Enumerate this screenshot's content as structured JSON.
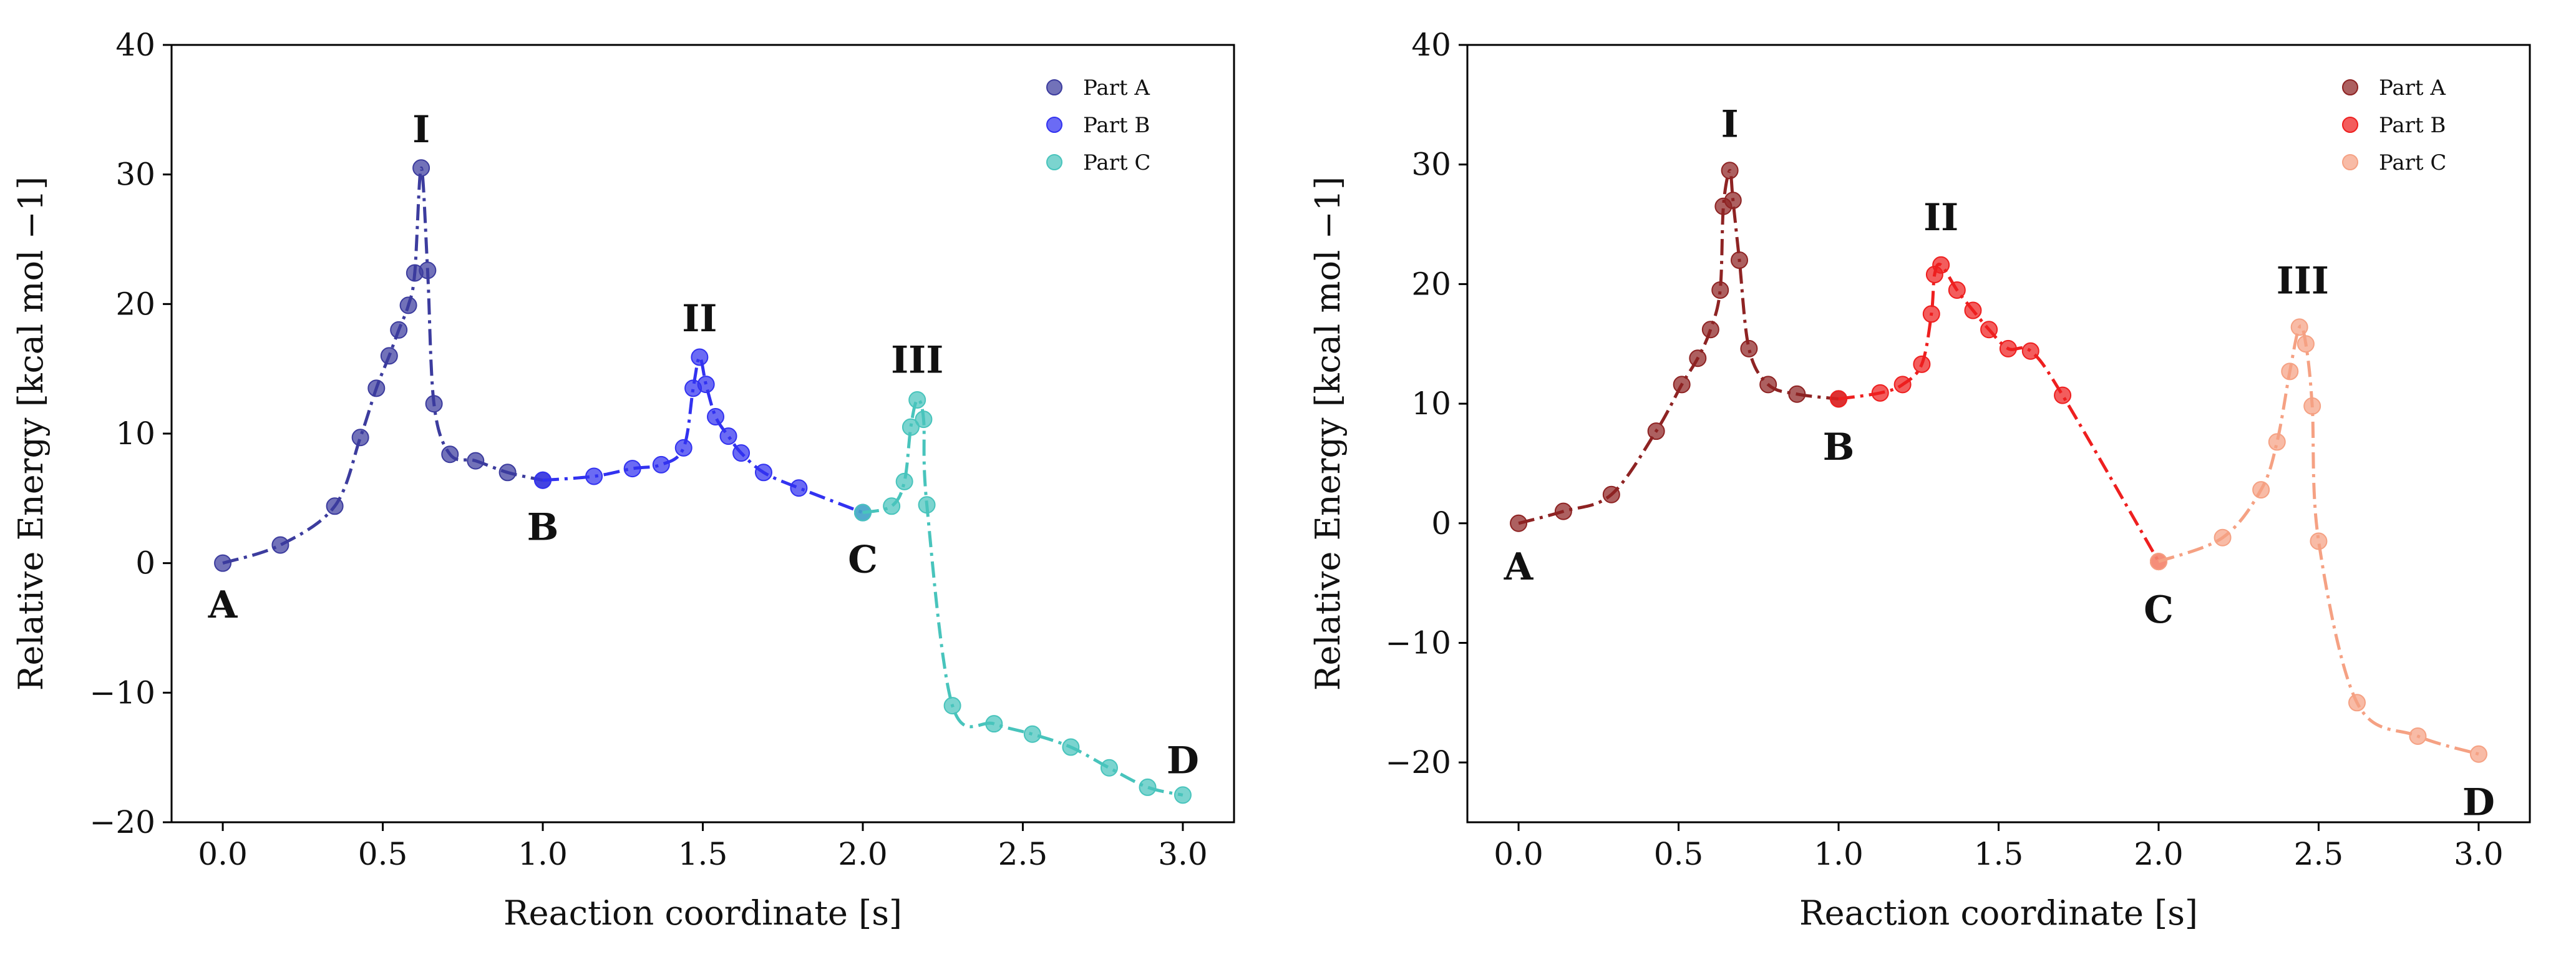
{
  "colors": {
    "left": {
      "part_a": "#3c3c9e",
      "part_b": "#3232f0",
      "part_c": "#48c4bc"
    },
    "right": {
      "part_a": "#8e2323",
      "part_b": "#ee1f1f",
      "part_c": "#f5a183"
    }
  },
  "chart_data": [
    {
      "type": "line",
      "title": "",
      "xlabel": "Reaction coordinate [s]",
      "ylabel": "Relative Energy [kcal mol −1]",
      "xlim": [
        -0.16,
        3.16
      ],
      "ylim": [
        -20,
        40
      ],
      "xticks": [
        0.0,
        0.5,
        1.0,
        1.5,
        2.0,
        2.5,
        3.0
      ],
      "xtick_labels": [
        "0.0",
        "0.5",
        "1.0",
        "1.5",
        "2.0",
        "2.5",
        "3.0"
      ],
      "yticks": [
        -20,
        -10,
        0,
        10,
        20,
        30,
        40
      ],
      "ytick_labels": [
        "−20",
        "−10",
        "0",
        "10",
        "20",
        "30",
        "40"
      ],
      "legend": {
        "position": "top-right",
        "entries": [
          "Part A",
          "Part B",
          "Part C"
        ]
      },
      "series": [
        {
          "name": "Part A",
          "color_key": "part_a",
          "points": [
            [
              0.0,
              0.0
            ],
            [
              0.18,
              1.4
            ],
            [
              0.35,
              4.4
            ],
            [
              0.43,
              9.7
            ],
            [
              0.48,
              13.5
            ],
            [
              0.52,
              16.0
            ],
            [
              0.55,
              18.0
            ],
            [
              0.58,
              19.9
            ],
            [
              0.6,
              22.4
            ],
            [
              0.62,
              30.5
            ],
            [
              0.64,
              22.6
            ],
            [
              0.66,
              12.3
            ],
            [
              0.71,
              8.4
            ],
            [
              0.79,
              7.9
            ],
            [
              0.89,
              7.0
            ],
            [
              1.0,
              6.4
            ]
          ]
        },
        {
          "name": "Part B",
          "color_key": "part_b",
          "points": [
            [
              1.0,
              6.4
            ],
            [
              1.16,
              6.7
            ],
            [
              1.28,
              7.3
            ],
            [
              1.37,
              7.6
            ],
            [
              1.44,
              8.9
            ],
            [
              1.47,
              13.5
            ],
            [
              1.49,
              15.9
            ],
            [
              1.51,
              13.8
            ],
            [
              1.54,
              11.3
            ],
            [
              1.58,
              9.8
            ],
            [
              1.62,
              8.5
            ],
            [
              1.69,
              7.0
            ],
            [
              1.8,
              5.8
            ],
            [
              2.0,
              3.9
            ]
          ]
        },
        {
          "name": "Part C",
          "color_key": "part_c",
          "points": [
            [
              2.0,
              3.9
            ],
            [
              2.09,
              4.4
            ],
            [
              2.13,
              6.3
            ],
            [
              2.15,
              10.5
            ],
            [
              2.17,
              12.6
            ],
            [
              2.19,
              11.1
            ],
            [
              2.2,
              4.5
            ],
            [
              2.28,
              -11.0
            ],
            [
              2.41,
              -12.4
            ],
            [
              2.53,
              -13.2
            ],
            [
              2.65,
              -14.2
            ],
            [
              2.77,
              -15.8
            ],
            [
              2.89,
              -17.3
            ],
            [
              3.0,
              -17.9
            ]
          ]
        }
      ],
      "annotations": [
        {
          "text": "A",
          "x": 0.0,
          "y": -3.2
        },
        {
          "text": "I",
          "x": 0.62,
          "y": 33.5
        },
        {
          "text": "B",
          "x": 1.0,
          "y": 2.8
        },
        {
          "text": "II",
          "x": 1.49,
          "y": 18.9
        },
        {
          "text": "C",
          "x": 2.0,
          "y": 0.3
        },
        {
          "text": "III",
          "x": 2.17,
          "y": 15.7
        },
        {
          "text": "D",
          "x": 3.0,
          "y": -15.2
        }
      ]
    },
    {
      "type": "line",
      "title": "",
      "xlabel": "Reaction coordinate [s]",
      "ylabel": "Relative Energy [kcal mol −1]",
      "xlim": [
        -0.16,
        3.16
      ],
      "ylim": [
        -25,
        40
      ],
      "xticks": [
        0.0,
        0.5,
        1.0,
        1.5,
        2.0,
        2.5,
        3.0
      ],
      "xtick_labels": [
        "0.0",
        "0.5",
        "1.0",
        "1.5",
        "2.0",
        "2.5",
        "3.0"
      ],
      "yticks": [
        -20,
        -10,
        0,
        10,
        20,
        30,
        40
      ],
      "ytick_labels": [
        "−20",
        "−10",
        "0",
        "10",
        "20",
        "30",
        "40"
      ],
      "legend": {
        "position": "top-right",
        "entries": [
          "Part A",
          "Part B",
          "Part C"
        ]
      },
      "series": [
        {
          "name": "Part A",
          "color_key": "part_a",
          "points": [
            [
              0.0,
              0.0
            ],
            [
              0.14,
              1.0
            ],
            [
              0.29,
              2.4
            ],
            [
              0.43,
              7.7
            ],
            [
              0.51,
              11.6
            ],
            [
              0.56,
              13.8
            ],
            [
              0.6,
              16.2
            ],
            [
              0.63,
              19.5
            ],
            [
              0.64,
              26.5
            ],
            [
              0.66,
              29.5
            ],
            [
              0.67,
              27.0
            ],
            [
              0.69,
              22.0
            ],
            [
              0.72,
              14.6
            ],
            [
              0.78,
              11.6
            ],
            [
              0.87,
              10.8
            ],
            [
              1.0,
              10.4
            ]
          ]
        },
        {
          "name": "Part B",
          "color_key": "part_b",
          "points": [
            [
              1.0,
              10.4
            ],
            [
              1.13,
              10.9
            ],
            [
              1.2,
              11.6
            ],
            [
              1.26,
              13.3
            ],
            [
              1.29,
              17.5
            ],
            [
              1.3,
              20.8
            ],
            [
              1.32,
              21.6
            ],
            [
              1.37,
              19.5
            ],
            [
              1.42,
              17.8
            ],
            [
              1.47,
              16.2
            ],
            [
              1.53,
              14.6
            ],
            [
              1.6,
              14.4
            ],
            [
              1.7,
              10.7
            ],
            [
              2.0,
              -3.2
            ]
          ]
        },
        {
          "name": "Part C",
          "color_key": "part_c",
          "points": [
            [
              2.0,
              -3.2
            ],
            [
              2.2,
              -1.2
            ],
            [
              2.32,
              2.8
            ],
            [
              2.37,
              6.8
            ],
            [
              2.41,
              12.7
            ],
            [
              2.44,
              16.4
            ],
            [
              2.46,
              15.0
            ],
            [
              2.48,
              9.8
            ],
            [
              2.5,
              -1.5
            ],
            [
              2.62,
              -15.0
            ],
            [
              2.81,
              -17.8
            ],
            [
              3.0,
              -19.3
            ]
          ]
        }
      ],
      "annotations": [
        {
          "text": "A",
          "x": 0.0,
          "y": -3.6
        },
        {
          "text": "I",
          "x": 0.66,
          "y": 33.4
        },
        {
          "text": "B",
          "x": 1.0,
          "y": 6.4
        },
        {
          "text": "II",
          "x": 1.32,
          "y": 25.6
        },
        {
          "text": "C",
          "x": 2.0,
          "y": -7.2
        },
        {
          "text": "III",
          "x": 2.45,
          "y": 20.3
        },
        {
          "text": "D",
          "x": 3.0,
          "y": -23.3
        }
      ]
    }
  ]
}
